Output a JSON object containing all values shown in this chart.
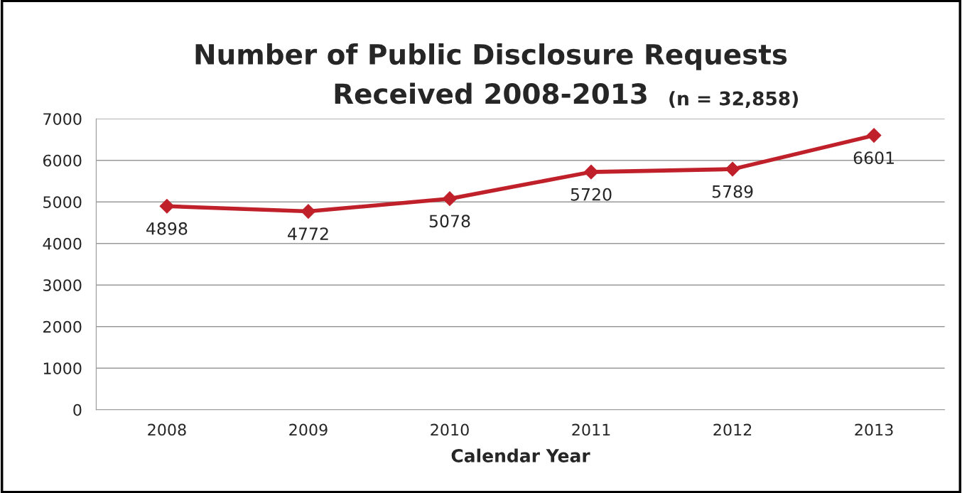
{
  "chart_data": {
    "type": "line",
    "title": "Number of Public Disclosure Requests\nReceived 2008-2013",
    "subtitle": "(n = 32,858)",
    "xlabel": "Calendar Year",
    "categories": [
      "2008",
      "2009",
      "2010",
      "2011",
      "2012",
      "2013"
    ],
    "series": [
      {
        "color": "#c0202a",
        "values": [
          4898,
          4772,
          5078,
          5720,
          5789,
          6601
        ]
      }
    ],
    "ylim": [
      0,
      7000
    ],
    "yticks": [
      0,
      1000,
      2000,
      3000,
      4000,
      5000,
      6000,
      7000
    ],
    "grid": "y",
    "marker": "diamond",
    "line_style": "solid",
    "data_labels": true
  }
}
